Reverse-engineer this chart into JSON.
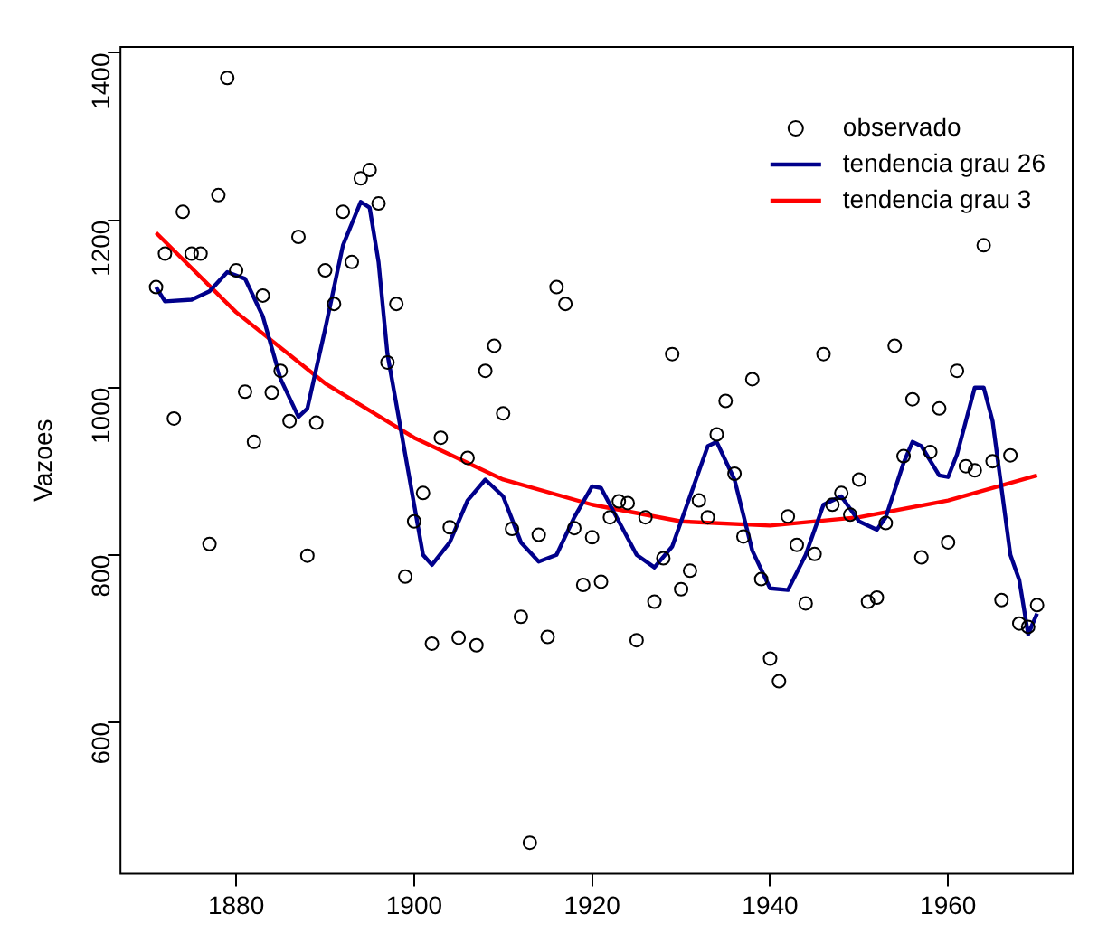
{
  "chart_data": {
    "type": "scatter",
    "ylabel": "Vazoes",
    "xlim": [
      1867,
      1974
    ],
    "ylim": [
      419,
      1407
    ],
    "xticks": [
      1880,
      1900,
      1920,
      1940,
      1960
    ],
    "yticks": [
      600,
      800,
      1000,
      1200,
      1400
    ],
    "grid": false,
    "legend": "top right",
    "series": [
      {
        "name": "observado",
        "type": "scatter",
        "marker": "circle",
        "color": "#000000",
        "x": [
          1871,
          1872,
          1873,
          1874,
          1875,
          1876,
          1877,
          1878,
          1879,
          1880,
          1881,
          1882,
          1883,
          1884,
          1885,
          1886,
          1887,
          1888,
          1889,
          1890,
          1891,
          1892,
          1893,
          1894,
          1895,
          1896,
          1897,
          1898,
          1899,
          1900,
          1901,
          1902,
          1903,
          1904,
          1905,
          1906,
          1907,
          1908,
          1909,
          1910,
          1911,
          1912,
          1913,
          1914,
          1915,
          1916,
          1917,
          1918,
          1919,
          1920,
          1921,
          1922,
          1923,
          1924,
          1925,
          1926,
          1927,
          1928,
          1929,
          1930,
          1931,
          1932,
          1933,
          1934,
          1935,
          1936,
          1937,
          1938,
          1939,
          1940,
          1941,
          1942,
          1943,
          1944,
          1945,
          1946,
          1947,
          1948,
          1949,
          1950,
          1951,
          1952,
          1953,
          1954,
          1955,
          1956,
          1957,
          1958,
          1959,
          1960,
          1961,
          1962,
          1963,
          1964,
          1965,
          1966,
          1967,
          1968,
          1969,
          1970
        ],
        "values": [
          1120,
          1160,
          963,
          1210,
          1160,
          1160,
          813,
          1230,
          1370,
          1140,
          995,
          935,
          1110,
          994,
          1020,
          960,
          1180,
          799,
          958,
          1140,
          1100,
          1210,
          1150,
          1250,
          1260,
          1220,
          1030,
          1100,
          774,
          840,
          874,
          694,
          940,
          833,
          701,
          916,
          692,
          1020,
          1050,
          969,
          831,
          726,
          456,
          824,
          702,
          1120,
          1100,
          832,
          764,
          821,
          768,
          845,
          864,
          862,
          698,
          845,
          744,
          796,
          1040,
          759,
          781,
          865,
          845,
          944,
          984,
          897,
          822,
          1010,
          771,
          676,
          649,
          846,
          812,
          742,
          801,
          1040,
          860,
          874,
          848,
          890,
          744,
          749,
          838,
          1050,
          918,
          986,
          797,
          923,
          975,
          815,
          1020,
          906,
          901,
          1170,
          912,
          746,
          919,
          718,
          714,
          740
        ]
      },
      {
        "name": "tendencia grau 26",
        "type": "line",
        "marker": "none",
        "color": "#00008b",
        "x": [
          1871,
          1872,
          1875,
          1877,
          1879,
          1881,
          1883,
          1885,
          1887,
          1888,
          1890,
          1892,
          1894,
          1895,
          1896,
          1897,
          1899,
          1901,
          1902,
          1904,
          1906,
          1908,
          1910,
          1912,
          1914,
          1916,
          1918,
          1920,
          1921,
          1923,
          1925,
          1927,
          1929,
          1931,
          1933,
          1934,
          1936,
          1938,
          1940,
          1942,
          1944,
          1946,
          1948,
          1950,
          1952,
          1953,
          1955,
          1956,
          1957,
          1959,
          1960,
          1961,
          1963,
          1964,
          1965,
          1967,
          1968,
          1969,
          1970
        ],
        "values": [
          1120,
          1103,
          1105,
          1115,
          1138,
          1130,
          1085,
          1010,
          965,
          975,
          1070,
          1170,
          1222,
          1215,
          1150,
          1040,
          920,
          800,
          788,
          815,
          865,
          890,
          870,
          815,
          792,
          800,
          845,
          882,
          880,
          840,
          800,
          785,
          810,
          870,
          930,
          935,
          890,
          805,
          760,
          758,
          800,
          860,
          870,
          840,
          830,
          845,
          910,
          935,
          930,
          895,
          893,
          920,
          1000,
          1000,
          960,
          800,
          770,
          705,
          730
        ]
      },
      {
        "name": "tendencia grau 3",
        "type": "line",
        "marker": "none",
        "color": "#ff0000",
        "x": [
          1871,
          1880,
          1890,
          1900,
          1910,
          1920,
          1930,
          1940,
          1950,
          1960,
          1970
        ],
        "values": [
          1185,
          1090,
          1005,
          940,
          890,
          860,
          840,
          835,
          845,
          865,
          895
        ]
      }
    ]
  }
}
